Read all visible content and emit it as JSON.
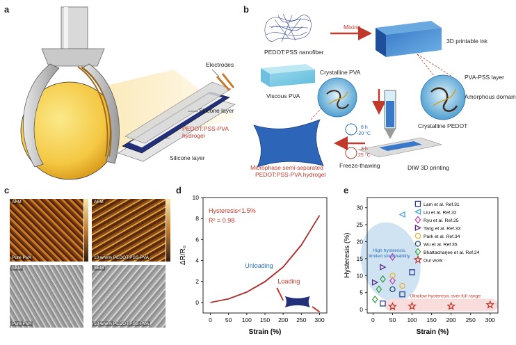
{
  "panels": {
    "a": "a",
    "b": "b",
    "c": "c",
    "d": "d",
    "e": "e"
  },
  "panel_a": {
    "electrodes": "Electrodes",
    "silicone_top": "Silicone layer",
    "hydrogel_line1": "PEDOT:PSS-PVA",
    "hydrogel_line2": "hydrogel",
    "silicone_bottom": "Silicone layer"
  },
  "panel_b": {
    "nanofiber": "PEDOT:PSS nanofiber",
    "mixing": "Mixing",
    "ink": "3D printable ink",
    "viscous_pva": "Viscous PVA",
    "crystalline_pva": "Crystalline PVA",
    "pva_pss_layer": "PVA-PSS layer",
    "amorphous": "Amorphous domain",
    "crystalline_pedot": "Crystalline PEDOT",
    "cond1_time": "8 h",
    "cond1_temp": "-20 °C",
    "cond2_time": "3 h",
    "cond2_temp": "25 °C",
    "freeze_thawing": "Freeze-thawing",
    "diw": "DIW 3D printing",
    "product_line1": "Microphase semi-separated",
    "product_line2": "PEDOT:PSS-PVA hydrogel"
  },
  "panel_c": {
    "afm": "AFM",
    "sem": "SEM",
    "pure_pva": "Pure PVA",
    "composite": "10 w/w% PEDOT:PSS-PVA"
  },
  "chart_data": [
    {
      "type": "line",
      "panel": "d",
      "x": [
        0,
        50,
        100,
        150,
        200,
        250,
        300
      ],
      "series": [
        {
          "name": "Loading",
          "values": [
            0,
            0.35,
            1.0,
            2.0,
            3.4,
            5.5,
            8.3
          ]
        },
        {
          "name": "Unloading",
          "values": [
            0,
            0.34,
            0.98,
            1.97,
            3.37,
            5.46,
            8.3
          ]
        }
      ],
      "xlabel": "Strain (%)",
      "ylabel": "ΔR/R₀",
      "xticks": [
        0,
        50,
        100,
        150,
        200,
        250,
        300
      ],
      "yticks": [
        0,
        2,
        4,
        6,
        8,
        10
      ],
      "xlim": [
        -20,
        320
      ],
      "ylim": [
        -1,
        10
      ],
      "annotations": [
        "Hysteresis<1.5%",
        "R² = 0.98",
        "Unloading",
        "Loading"
      ],
      "colors": {
        "curve": "#b03030",
        "unloading_text": "#2a6fb5",
        "loading_text": "#c0392b"
      }
    },
    {
      "type": "scatter",
      "panel": "e",
      "xlabel": "Strain (%)",
      "ylabel": "Hysteresis (%)",
      "xticks": [
        0,
        50,
        100,
        150,
        200,
        250,
        300
      ],
      "yticks": [
        0,
        5,
        10,
        15,
        20,
        25,
        30
      ],
      "xlim": [
        -15,
        320
      ],
      "ylim": [
        -1,
        33
      ],
      "series": [
        {
          "name": "Lam et al. Ref.31",
          "marker": "square",
          "color": "#2b3f91",
          "points": [
            [
              25,
              1.8
            ],
            [
              75,
              4.5
            ],
            [
              100,
              11
            ]
          ]
        },
        {
          "name": "Liu et al. Ref.32",
          "marker": "triangle-left",
          "color": "#4aa3df",
          "points": [
            [
              75,
              28
            ]
          ]
        },
        {
          "name": "Ryu et al. Ref.25",
          "marker": "diamond",
          "color": "#c03fb0",
          "points": [
            [
              50,
              15.5
            ],
            [
              50,
              8.5
            ]
          ]
        },
        {
          "name": "Tang et al. Ref.33",
          "marker": "triangle-right",
          "color": "#5a2a8a",
          "points": [
            [
              5,
              8
            ],
            [
              25,
              12.5
            ]
          ]
        },
        {
          "name": "Park et al. Ref.34",
          "marker": "circle",
          "color": "#e8b43a",
          "points": [
            [
              50,
              10
            ],
            [
              75,
              7
            ]
          ]
        },
        {
          "name": "Wu et al. Ref.35",
          "marker": "circle",
          "color": "#2a5070",
          "points": [
            [
              50,
              6
            ]
          ]
        },
        {
          "name": "Bhattacharjee et al. Ref.24",
          "marker": "diamond",
          "color": "#3da34a",
          "points": [
            [
              5,
              3
            ],
            [
              15,
              6
            ],
            [
              25,
              9
            ]
          ]
        },
        {
          "name": "Our work",
          "marker": "star",
          "color": "#c0392b",
          "points": [
            [
              50,
              0.9
            ],
            [
              100,
              1.0
            ],
            [
              200,
              1.0
            ],
            [
              300,
              1.4
            ]
          ]
        }
      ],
      "annotations": [
        "High hysteresis, limited stretchability",
        "Ultralow hysteresis over full range"
      ],
      "colors": {
        "high_region": "#cfe3f3",
        "low_region": "#f9dcdc",
        "high_text": "#2a6fb5",
        "low_text": "#c0392b"
      }
    }
  ]
}
